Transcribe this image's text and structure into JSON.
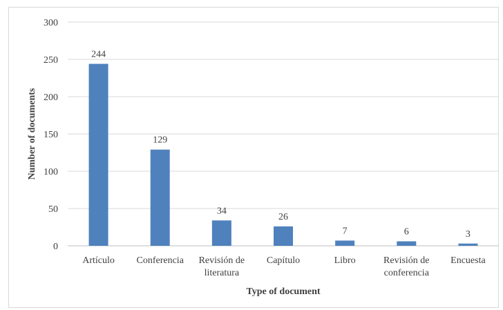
{
  "chart_data": {
    "type": "bar",
    "categories": [
      [
        "Artículo"
      ],
      [
        "Conferencia"
      ],
      [
        "Revisión de",
        "literatura"
      ],
      [
        "Capítulo"
      ],
      [
        "Libro"
      ],
      [
        "Revisión de",
        "conferencia"
      ],
      [
        "Encuesta"
      ]
    ],
    "values": [
      244,
      129,
      34,
      26,
      7,
      6,
      3
    ],
    "data_labels": [
      "244",
      "129",
      "34",
      "26",
      "7",
      "6",
      "3"
    ],
    "xlabel": "Type of document",
    "ylabel": "Number of documents",
    "ylim": [
      0,
      300
    ],
    "yticks": [
      0,
      50,
      100,
      150,
      200,
      250,
      300
    ],
    "grid": true,
    "bar_color": "#4f81bd"
  }
}
